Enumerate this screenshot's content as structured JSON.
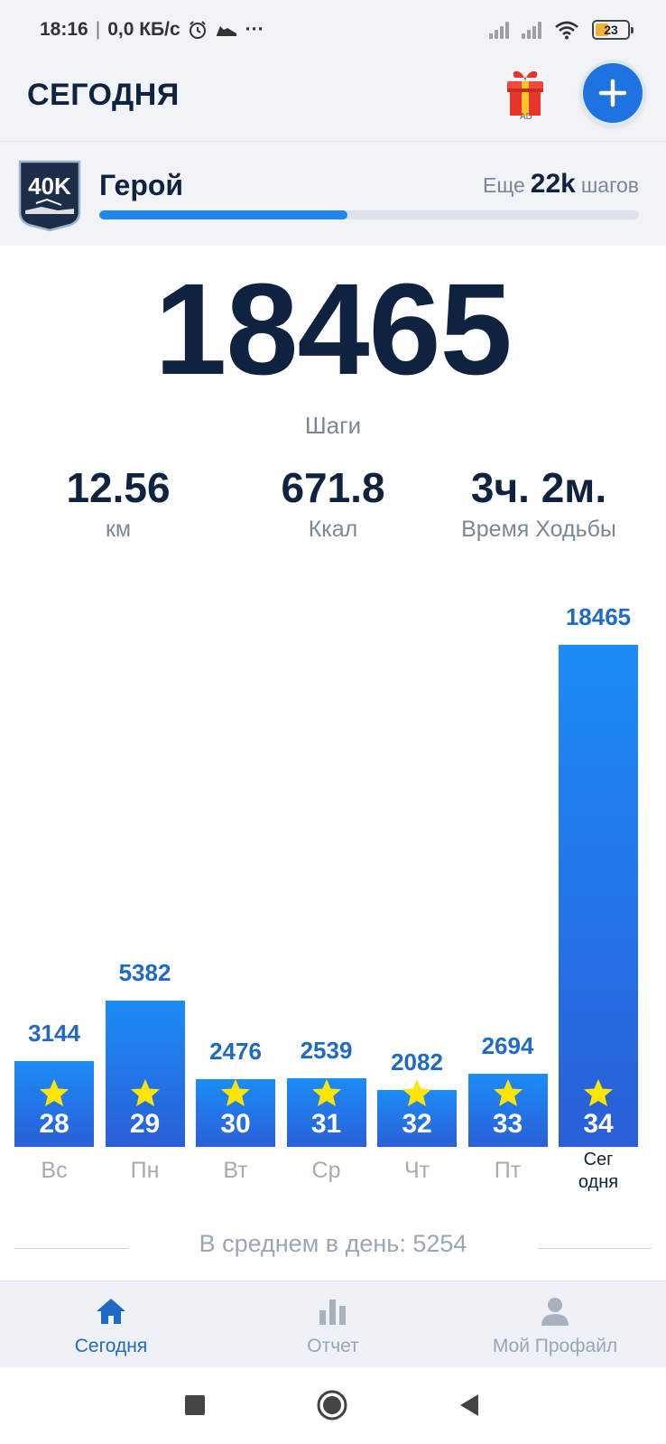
{
  "status_bar": {
    "time": "18:16",
    "network_speed": "0,0 КБ/с",
    "more": "···",
    "battery_level": "23"
  },
  "header": {
    "title": "СЕГОДНЯ",
    "gift_badge": "AD"
  },
  "level": {
    "badge_text": "40K",
    "name": "Герой",
    "remaining_prefix": "Еще",
    "remaining_value": "22k",
    "remaining_suffix": "шагов",
    "progress_fraction": 0.46
  },
  "summary": {
    "steps": "18465",
    "steps_label": "Шаги",
    "distance_value": "12.56",
    "distance_label": "км",
    "calories_value": "671.8",
    "calories_label": "Ккал",
    "walk_time_value": "3ч. 2м.",
    "walk_time_label": "Время Ходьбы"
  },
  "chart_data": {
    "type": "bar",
    "categories": [
      "Вс",
      "Пн",
      "Вт",
      "Ср",
      "Чт",
      "Пт",
      "Сег\nодня"
    ],
    "values": [
      3144,
      5382,
      2476,
      2539,
      2082,
      2694,
      18465
    ],
    "day_numbers": [
      "28",
      "29",
      "30",
      "31",
      "32",
      "33",
      "34"
    ],
    "ylim": [
      0,
      18465
    ],
    "average_label": "В среднем в день: 5254"
  },
  "bottom_nav": {
    "items": [
      {
        "label": "Сегодня",
        "icon": "home-icon",
        "active": true
      },
      {
        "label": "Отчет",
        "icon": "report-icon",
        "active": false
      },
      {
        "label": "Мой Профайл",
        "icon": "profile-icon",
        "active": false
      }
    ]
  },
  "colors": {
    "accent": "#1f73e0",
    "bar_top": "#1c8cf6",
    "bar_bottom": "#2a5fd7",
    "text_dark": "#0f2340",
    "star": "#ffe600"
  }
}
